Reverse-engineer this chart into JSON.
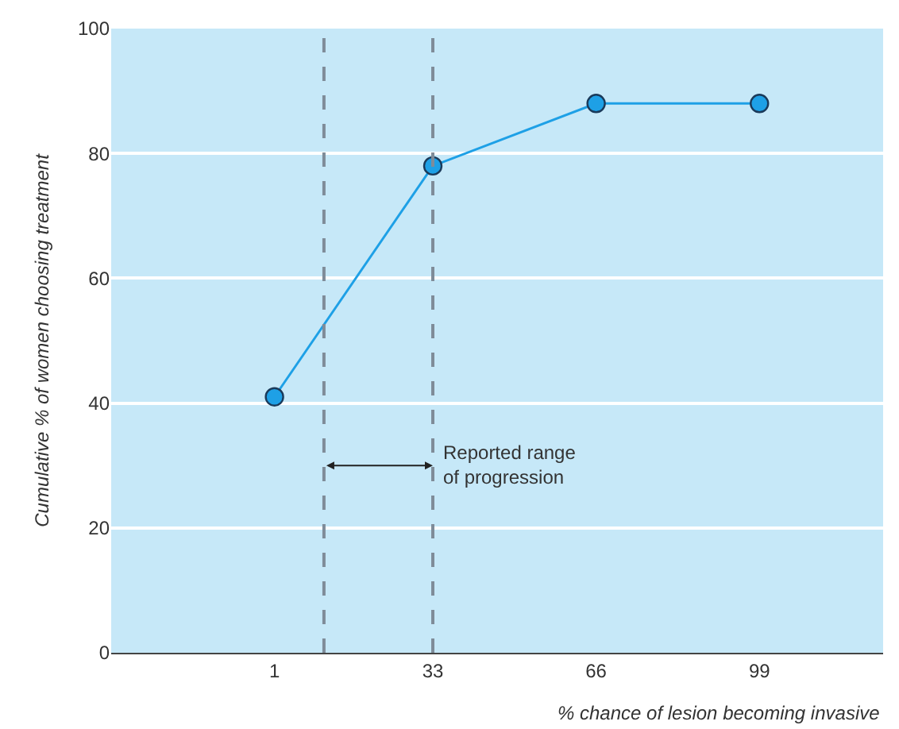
{
  "chart_data": {
    "type": "line",
    "xlabel": "% chance of lesion becoming invasive",
    "ylabel": "Cumulative % of women choosing treatment",
    "x": [
      1,
      33,
      66,
      99
    ],
    "series": [
      {
        "color": "#1ea0e6",
        "values": [
          41,
          78,
          88,
          88
        ]
      }
    ],
    "xlim": [
      -32,
      124
    ],
    "xticks": [
      1,
      33,
      66,
      99
    ],
    "ylim": [
      0,
      100
    ],
    "yticks": [
      0,
      20,
      40,
      60,
      80,
      100
    ],
    "grid": "y",
    "marker": "circle",
    "line_style": "solid",
    "ref_lines": [
      {
        "axis": "x",
        "value": 11,
        "color": "#7f8c99",
        "line_style": "dashed"
      },
      {
        "axis": "x",
        "value": 33,
        "color": "#7f8c99",
        "line_style": "dashed"
      }
    ],
    "annotations": [
      {
        "text": "Reported range\nof progression",
        "x": 33,
        "y": 30
      }
    ]
  }
}
